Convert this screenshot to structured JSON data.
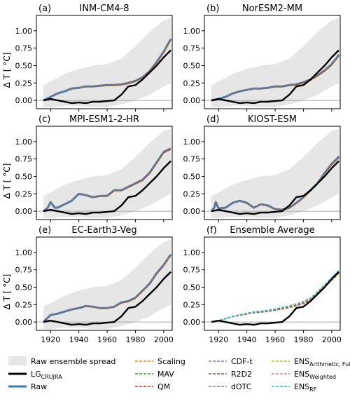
{
  "figure": {
    "ylabel": "Δ T [ °C]",
    "x_ticks": [
      1920,
      1940,
      1960,
      1980,
      2000
    ],
    "y_ticks": [
      "0.00",
      "0.25",
      "0.50",
      "0.75",
      "1.00"
    ]
  },
  "legend": {
    "spread_label": "Raw ensemble spread",
    "lg_label": "LG",
    "lg_sub": "CRUJRA",
    "raw_label": "Raw",
    "items": [
      {
        "label": "Scaling",
        "sub": "",
        "color": "#ff7f0e",
        "dashed": true
      },
      {
        "label": "MAV",
        "sub": "",
        "color": "#2ca02c",
        "dashed": true
      },
      {
        "label": "QM",
        "sub": "",
        "color": "#d62728",
        "dashed": true
      },
      {
        "label": "CDF-t",
        "sub": "",
        "color": "#9467bd",
        "dashed": true
      },
      {
        "label": "R2D2",
        "sub": "",
        "color": "#8c564b",
        "dashed": true
      },
      {
        "label": "dOTC",
        "sub": "",
        "color": "#7f7f7f",
        "dashed": true
      },
      {
        "label": "ENS",
        "sub": "Arithmetic, Full",
        "color": "#bcbd22",
        "dashed": true
      },
      {
        "label": "ENS",
        "sub": "Weighted",
        "color": "#e377c2",
        "dashed": true
      },
      {
        "label": "ENS",
        "sub": "RF",
        "color": "#17becf",
        "dashed": true
      }
    ],
    "colors": {
      "spread": "#e6e6e6",
      "lg": "#000000",
      "raw": "#3a78b5"
    }
  },
  "chart_data": [
    {
      "type": "line",
      "panel": "(a)",
      "title": "INM-CM4-8",
      "xlim": [
        1910,
        2006
      ],
      "ylim": [
        -0.12,
        1.22
      ],
      "lg": [
        [
          1915,
          0.0
        ],
        [
          1920,
          0.02
        ],
        [
          1925,
          0.0
        ],
        [
          1930,
          -0.02
        ],
        [
          1935,
          -0.04
        ],
        [
          1940,
          -0.03
        ],
        [
          1945,
          -0.04
        ],
        [
          1950,
          -0.02
        ],
        [
          1955,
          -0.02
        ],
        [
          1960,
          -0.01
        ],
        [
          1965,
          0.0
        ],
        [
          1970,
          0.08
        ],
        [
          1975,
          0.2
        ],
        [
          1980,
          0.22
        ],
        [
          1985,
          0.3
        ],
        [
          1990,
          0.4
        ],
        [
          1995,
          0.5
        ],
        [
          2000,
          0.62
        ],
        [
          2005,
          0.72
        ]
      ],
      "model": [
        [
          1915,
          0.0
        ],
        [
          1920,
          0.05
        ],
        [
          1925,
          0.1
        ],
        [
          1930,
          0.13
        ],
        [
          1935,
          0.17
        ],
        [
          1940,
          0.18
        ],
        [
          1945,
          0.2
        ],
        [
          1950,
          0.2
        ],
        [
          1955,
          0.21
        ],
        [
          1960,
          0.22
        ],
        [
          1965,
          0.22
        ],
        [
          1970,
          0.23
        ],
        [
          1975,
          0.25
        ],
        [
          1980,
          0.28
        ],
        [
          1985,
          0.33
        ],
        [
          1990,
          0.42
        ],
        [
          1995,
          0.55
        ],
        [
          2000,
          0.7
        ],
        [
          2005,
          0.88
        ]
      ],
      "spread": [
        [
          1915,
          -0.1,
          0.22
        ],
        [
          1920,
          -0.1,
          0.27
        ],
        [
          1930,
          -0.08,
          0.38
        ],
        [
          1940,
          -0.08,
          0.45
        ],
        [
          1950,
          -0.1,
          0.5
        ],
        [
          1960,
          -0.1,
          0.52
        ],
        [
          1970,
          -0.06,
          0.6
        ],
        [
          1980,
          0.0,
          0.78
        ],
        [
          1990,
          0.08,
          0.98
        ],
        [
          2000,
          0.2,
          1.15
        ],
        [
          2005,
          0.25,
          1.18
        ]
      ]
    },
    {
      "type": "line",
      "panel": "(b)",
      "title": "NorESM2-MM",
      "xlim": [
        1910,
        2006
      ],
      "ylim": [
        -0.12,
        1.22
      ],
      "lg": [
        [
          1915,
          0.0
        ],
        [
          1920,
          0.02
        ],
        [
          1925,
          0.0
        ],
        [
          1930,
          -0.02
        ],
        [
          1935,
          -0.04
        ],
        [
          1940,
          -0.03
        ],
        [
          1945,
          -0.04
        ],
        [
          1950,
          -0.02
        ],
        [
          1955,
          -0.02
        ],
        [
          1960,
          -0.01
        ],
        [
          1965,
          0.0
        ],
        [
          1970,
          0.08
        ],
        [
          1975,
          0.2
        ],
        [
          1980,
          0.22
        ],
        [
          1985,
          0.3
        ],
        [
          1990,
          0.4
        ],
        [
          1995,
          0.5
        ],
        [
          2000,
          0.62
        ],
        [
          2005,
          0.72
        ]
      ],
      "model": [
        [
          1915,
          0.0
        ],
        [
          1920,
          0.02
        ],
        [
          1925,
          0.05
        ],
        [
          1930,
          0.1
        ],
        [
          1935,
          0.13
        ],
        [
          1940,
          0.15
        ],
        [
          1945,
          0.17
        ],
        [
          1950,
          0.17
        ],
        [
          1955,
          0.18
        ],
        [
          1960,
          0.2
        ],
        [
          1965,
          0.2
        ],
        [
          1970,
          0.22
        ],
        [
          1975,
          0.23
        ],
        [
          1980,
          0.26
        ],
        [
          1985,
          0.3
        ],
        [
          1990,
          0.36
        ],
        [
          1995,
          0.43
        ],
        [
          2000,
          0.52
        ],
        [
          2005,
          0.65
        ]
      ],
      "spread": [
        [
          1915,
          -0.1,
          0.22
        ],
        [
          1920,
          -0.1,
          0.27
        ],
        [
          1930,
          -0.08,
          0.38
        ],
        [
          1940,
          -0.08,
          0.45
        ],
        [
          1950,
          -0.1,
          0.5
        ],
        [
          1960,
          -0.1,
          0.52
        ],
        [
          1970,
          -0.06,
          0.6
        ],
        [
          1980,
          0.0,
          0.78
        ],
        [
          1990,
          0.08,
          0.98
        ],
        [
          2000,
          0.2,
          1.15
        ],
        [
          2005,
          0.25,
          1.18
        ]
      ]
    },
    {
      "type": "line",
      "panel": "(c)",
      "title": "MPI-ESM1-2-HR",
      "xlim": [
        1910,
        2006
      ],
      "ylim": [
        -0.12,
        1.22
      ],
      "lg": [
        [
          1915,
          0.0
        ],
        [
          1920,
          0.02
        ],
        [
          1925,
          0.0
        ],
        [
          1930,
          -0.02
        ],
        [
          1935,
          -0.04
        ],
        [
          1940,
          -0.03
        ],
        [
          1945,
          -0.04
        ],
        [
          1950,
          -0.02
        ],
        [
          1955,
          -0.02
        ],
        [
          1960,
          -0.01
        ],
        [
          1965,
          0.0
        ],
        [
          1970,
          0.08
        ],
        [
          1975,
          0.2
        ],
        [
          1980,
          0.22
        ],
        [
          1985,
          0.3
        ],
        [
          1990,
          0.4
        ],
        [
          1995,
          0.5
        ],
        [
          2000,
          0.62
        ],
        [
          2005,
          0.72
        ]
      ],
      "model": [
        [
          1915,
          0.0
        ],
        [
          1918,
          0.05
        ],
        [
          1920,
          0.13
        ],
        [
          1923,
          0.05
        ],
        [
          1925,
          0.05
        ],
        [
          1930,
          0.1
        ],
        [
          1935,
          0.15
        ],
        [
          1940,
          0.25
        ],
        [
          1945,
          0.23
        ],
        [
          1950,
          0.2
        ],
        [
          1955,
          0.22
        ],
        [
          1960,
          0.22
        ],
        [
          1965,
          0.3
        ],
        [
          1970,
          0.3
        ],
        [
          1975,
          0.35
        ],
        [
          1980,
          0.4
        ],
        [
          1985,
          0.45
        ],
        [
          1990,
          0.55
        ],
        [
          1995,
          0.7
        ],
        [
          2000,
          0.85
        ],
        [
          2005,
          0.9
        ]
      ],
      "spread": [
        [
          1915,
          -0.1,
          0.22
        ],
        [
          1920,
          -0.1,
          0.27
        ],
        [
          1930,
          -0.08,
          0.38
        ],
        [
          1940,
          -0.08,
          0.45
        ],
        [
          1950,
          -0.1,
          0.5
        ],
        [
          1960,
          -0.1,
          0.52
        ],
        [
          1970,
          -0.06,
          0.6
        ],
        [
          1980,
          0.0,
          0.78
        ],
        [
          1990,
          0.08,
          0.98
        ],
        [
          2000,
          0.2,
          1.15
        ],
        [
          2005,
          0.25,
          1.18
        ]
      ]
    },
    {
      "type": "line",
      "panel": "(d)",
      "title": "KIOST-ESM",
      "xlim": [
        1910,
        2006
      ],
      "ylim": [
        -0.12,
        1.22
      ],
      "lg": [
        [
          1915,
          0.0
        ],
        [
          1920,
          0.02
        ],
        [
          1925,
          0.0
        ],
        [
          1930,
          -0.02
        ],
        [
          1935,
          -0.04
        ],
        [
          1940,
          -0.03
        ],
        [
          1945,
          -0.04
        ],
        [
          1950,
          -0.02
        ],
        [
          1955,
          -0.02
        ],
        [
          1960,
          -0.01
        ],
        [
          1965,
          0.0
        ],
        [
          1970,
          0.08
        ],
        [
          1975,
          0.2
        ],
        [
          1980,
          0.22
        ],
        [
          1985,
          0.3
        ],
        [
          1990,
          0.4
        ],
        [
          1995,
          0.5
        ],
        [
          2000,
          0.62
        ],
        [
          2005,
          0.72
        ]
      ],
      "model": [
        [
          1915,
          0.0
        ],
        [
          1917,
          0.05
        ],
        [
          1918,
          0.13
        ],
        [
          1920,
          0.04
        ],
        [
          1925,
          0.05
        ],
        [
          1930,
          0.12
        ],
        [
          1935,
          0.15
        ],
        [
          1940,
          0.12
        ],
        [
          1945,
          0.05
        ],
        [
          1950,
          0.1
        ],
        [
          1955,
          0.08
        ],
        [
          1960,
          0.03
        ],
        [
          1965,
          0.02
        ],
        [
          1970,
          0.05
        ],
        [
          1975,
          0.12
        ],
        [
          1980,
          0.2
        ],
        [
          1985,
          0.3
        ],
        [
          1990,
          0.4
        ],
        [
          1995,
          0.55
        ],
        [
          2000,
          0.68
        ],
        [
          2005,
          0.78
        ]
      ],
      "spread": [
        [
          1915,
          -0.1,
          0.22
        ],
        [
          1920,
          -0.1,
          0.27
        ],
        [
          1930,
          -0.08,
          0.38
        ],
        [
          1940,
          -0.08,
          0.45
        ],
        [
          1950,
          -0.1,
          0.5
        ],
        [
          1960,
          -0.1,
          0.52
        ],
        [
          1970,
          -0.06,
          0.6
        ],
        [
          1980,
          0.0,
          0.78
        ],
        [
          1990,
          0.08,
          0.98
        ],
        [
          2000,
          0.2,
          1.15
        ],
        [
          2005,
          0.25,
          1.18
        ]
      ]
    },
    {
      "type": "line",
      "panel": "(e)",
      "title": "EC-Earth3-Veg",
      "xlim": [
        1910,
        2006
      ],
      "ylim": [
        -0.12,
        1.22
      ],
      "lg": [
        [
          1915,
          0.0
        ],
        [
          1920,
          0.02
        ],
        [
          1925,
          0.0
        ],
        [
          1930,
          -0.02
        ],
        [
          1935,
          -0.04
        ],
        [
          1940,
          -0.03
        ],
        [
          1945,
          -0.04
        ],
        [
          1950,
          -0.02
        ],
        [
          1955,
          -0.02
        ],
        [
          1960,
          -0.01
        ],
        [
          1965,
          0.0
        ],
        [
          1970,
          0.08
        ],
        [
          1975,
          0.2
        ],
        [
          1980,
          0.22
        ],
        [
          1985,
          0.3
        ],
        [
          1990,
          0.4
        ],
        [
          1995,
          0.5
        ],
        [
          2000,
          0.62
        ],
        [
          2005,
          0.72
        ]
      ],
      "model": [
        [
          1915,
          0.0
        ],
        [
          1920,
          0.1
        ],
        [
          1925,
          0.12
        ],
        [
          1930,
          0.15
        ],
        [
          1935,
          0.18
        ],
        [
          1940,
          0.2
        ],
        [
          1945,
          0.23
        ],
        [
          1950,
          0.22
        ],
        [
          1955,
          0.2
        ],
        [
          1960,
          0.2
        ],
        [
          1965,
          0.22
        ],
        [
          1970,
          0.28
        ],
        [
          1975,
          0.3
        ],
        [
          1980,
          0.35
        ],
        [
          1985,
          0.45
        ],
        [
          1990,
          0.55
        ],
        [
          1995,
          0.7
        ],
        [
          2000,
          0.82
        ],
        [
          2005,
          0.97
        ]
      ],
      "spread": [
        [
          1915,
          -0.1,
          0.22
        ],
        [
          1920,
          -0.1,
          0.27
        ],
        [
          1930,
          -0.08,
          0.38
        ],
        [
          1940,
          -0.08,
          0.45
        ],
        [
          1950,
          -0.1,
          0.5
        ],
        [
          1960,
          -0.1,
          0.52
        ],
        [
          1970,
          -0.06,
          0.6
        ],
        [
          1980,
          0.0,
          0.78
        ],
        [
          1990,
          0.08,
          0.98
        ],
        [
          2000,
          0.2,
          1.15
        ],
        [
          2005,
          0.25,
          1.18
        ]
      ]
    },
    {
      "type": "line",
      "panel": "(f)",
      "title": "Ensemble Average",
      "xlim": [
        1910,
        2006
      ],
      "ylim": [
        -0.12,
        1.22
      ],
      "lg": [
        [
          1915,
          0.0
        ],
        [
          1920,
          0.02
        ],
        [
          1925,
          0.0
        ],
        [
          1930,
          -0.02
        ],
        [
          1935,
          -0.04
        ],
        [
          1940,
          -0.03
        ],
        [
          1945,
          -0.04
        ],
        [
          1950,
          -0.02
        ],
        [
          1955,
          -0.02
        ],
        [
          1960,
          -0.01
        ],
        [
          1965,
          0.0
        ],
        [
          1970,
          0.08
        ],
        [
          1975,
          0.2
        ],
        [
          1980,
          0.22
        ],
        [
          1985,
          0.3
        ],
        [
          1990,
          0.4
        ],
        [
          1995,
          0.5
        ],
        [
          2000,
          0.62
        ],
        [
          2005,
          0.72
        ]
      ],
      "model": [
        [
          1915,
          0.0
        ],
        [
          1920,
          0.02
        ],
        [
          1925,
          0.05
        ],
        [
          1930,
          0.08
        ],
        [
          1935,
          0.1
        ],
        [
          1940,
          0.12
        ],
        [
          1945,
          0.14
        ],
        [
          1950,
          0.15
        ],
        [
          1955,
          0.16
        ],
        [
          1960,
          0.18
        ],
        [
          1965,
          0.2
        ],
        [
          1970,
          0.22
        ],
        [
          1975,
          0.25
        ],
        [
          1980,
          0.28
        ],
        [
          1985,
          0.33
        ],
        [
          1990,
          0.42
        ],
        [
          1995,
          0.52
        ],
        [
          2000,
          0.62
        ],
        [
          2005,
          0.72
        ]
      ],
      "spread": null,
      "raw_shown": false
    }
  ]
}
